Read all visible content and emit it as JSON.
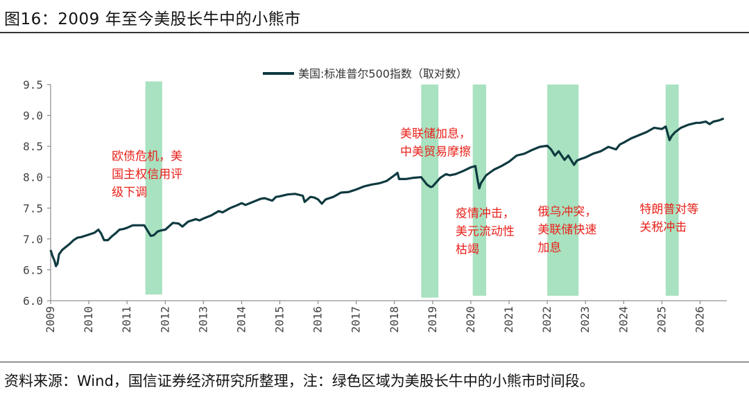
{
  "title": "图16：2009 年至今美股长牛中的小熊市",
  "source": "资料来源：Wind，国信证券经济研究所整理，注：绿色区域为美股长牛中的小熊市时间段。",
  "chart_data": {
    "type": "line",
    "title": "图16：2009 年至今美股长牛中的小熊市",
    "xlabel": "",
    "ylabel": "",
    "xlim": [
      2009.0,
      2026.7
    ],
    "ylim": [
      6.0,
      9.5
    ],
    "yticks": [
      "9.5",
      "9.0",
      "8.5",
      "8.0",
      "7.5",
      "7.0",
      "6.5",
      "6.0"
    ],
    "xticks": [
      "2009",
      "2010",
      "2011",
      "2012",
      "2013",
      "2014",
      "2015",
      "2016",
      "2017",
      "2018",
      "2019",
      "2020",
      "2021",
      "2022",
      "2023",
      "2024",
      "2025",
      "2026"
    ],
    "legend": {
      "position": "top-center",
      "label": "美国:标准普尔500指数（取对数）"
    },
    "grid": false,
    "colors": {
      "line": "#0f3a40",
      "band": "#a8e2c0",
      "annotation": "#e8211b"
    },
    "series": [
      {
        "name": "美国:标准普尔500指数（取对数）",
        "x": [
          2009.0,
          2009.05,
          2009.1,
          2009.14,
          2009.18,
          2009.22,
          2009.3,
          2009.4,
          2009.5,
          2009.6,
          2009.7,
          2009.8,
          2009.9,
          2010.0,
          2010.15,
          2010.25,
          2010.32,
          2010.4,
          2010.5,
          2010.6,
          2010.7,
          2010.8,
          2010.9,
          2011.0,
          2011.15,
          2011.3,
          2011.45,
          2011.55,
          2011.62,
          2011.7,
          2011.8,
          2011.9,
          2012.0,
          2012.2,
          2012.35,
          2012.45,
          2012.6,
          2012.8,
          2012.9,
          2013.0,
          2013.2,
          2013.4,
          2013.5,
          2013.7,
          2013.9,
          2014.0,
          2014.1,
          2014.3,
          2014.5,
          2014.6,
          2014.8,
          2014.9,
          2015.0,
          2015.2,
          2015.4,
          2015.6,
          2015.65,
          2015.8,
          2015.9,
          2016.0,
          2016.1,
          2016.2,
          2016.4,
          2016.6,
          2016.8,
          2016.9,
          2017.0,
          2017.2,
          2017.4,
          2017.6,
          2017.8,
          2018.0,
          2018.08,
          2018.12,
          2018.3,
          2018.5,
          2018.7,
          2018.85,
          2018.95,
          2019.0,
          2019.2,
          2019.35,
          2019.45,
          2019.6,
          2019.8,
          2020.0,
          2020.12,
          2020.18,
          2020.22,
          2020.26,
          2020.4,
          2020.6,
          2020.8,
          2021.0,
          2021.2,
          2021.4,
          2021.6,
          2021.8,
          2022.0,
          2022.1,
          2022.2,
          2022.3,
          2022.45,
          2022.55,
          2022.7,
          2022.78,
          2022.9,
          2023.0,
          2023.2,
          2023.4,
          2023.6,
          2023.8,
          2023.9,
          2024.0,
          2024.2,
          2024.4,
          2024.6,
          2024.8,
          2025.0,
          2025.1,
          2025.2,
          2025.26,
          2025.35,
          2025.5,
          2025.7,
          2025.9,
          2026.0,
          2026.15,
          2026.25,
          2026.35,
          2026.5,
          2026.62
        ],
        "values": [
          6.82,
          6.72,
          6.65,
          6.56,
          6.6,
          6.75,
          6.82,
          6.87,
          6.92,
          6.98,
          7.02,
          7.03,
          7.05,
          7.07,
          7.1,
          7.15,
          7.09,
          6.98,
          6.98,
          7.04,
          7.09,
          7.15,
          7.16,
          7.18,
          7.22,
          7.22,
          7.22,
          7.12,
          7.05,
          7.06,
          7.12,
          7.14,
          7.15,
          7.26,
          7.25,
          7.2,
          7.28,
          7.32,
          7.3,
          7.33,
          7.38,
          7.45,
          7.43,
          7.5,
          7.55,
          7.58,
          7.55,
          7.6,
          7.65,
          7.66,
          7.62,
          7.68,
          7.69,
          7.72,
          7.73,
          7.7,
          7.6,
          7.68,
          7.67,
          7.64,
          7.57,
          7.64,
          7.68,
          7.75,
          7.76,
          7.78,
          7.8,
          7.85,
          7.88,
          7.9,
          7.94,
          8.03,
          8.07,
          7.97,
          7.97,
          7.99,
          8.0,
          7.88,
          7.84,
          7.85,
          7.99,
          8.05,
          8.03,
          8.05,
          8.1,
          8.16,
          8.18,
          7.95,
          7.82,
          7.9,
          8.03,
          8.12,
          8.18,
          8.25,
          8.35,
          8.38,
          8.44,
          8.49,
          8.51,
          8.45,
          8.35,
          8.42,
          8.28,
          8.35,
          8.2,
          8.27,
          8.3,
          8.32,
          8.38,
          8.42,
          8.49,
          8.45,
          8.53,
          8.56,
          8.63,
          8.68,
          8.73,
          8.8,
          8.78,
          8.82,
          8.6,
          8.67,
          8.73,
          8.8,
          8.85,
          8.88,
          8.88,
          8.9,
          8.86,
          8.9,
          8.92,
          8.95
        ]
      }
    ],
    "bands": [
      {
        "x0": 2011.48,
        "x1": 2011.92,
        "y0": 6.1,
        "y1": 9.55
      },
      {
        "x0": 2018.7,
        "x1": 2019.15,
        "y0": 6.05,
        "y1": 9.5
      },
      {
        "x0": 2020.05,
        "x1": 2020.4,
        "y0": 6.08,
        "y1": 9.5
      },
      {
        "x0": 2022.0,
        "x1": 2022.82,
        "y0": 6.08,
        "y1": 9.5
      },
      {
        "x0": 2025.1,
        "x1": 2025.44,
        "y0": 6.08,
        "y1": 9.5
      }
    ],
    "annotations": [
      {
        "lines": [
          "欧债危机，美",
          "国主权信用评",
          "级下调"
        ],
        "x": 2010.6,
        "y": 8.28
      },
      {
        "lines": [
          "美联储加息，",
          "中美贸易摩擦"
        ],
        "x": 2018.15,
        "y": 8.64
      },
      {
        "lines": [
          "疫情冲击，",
          "美元流动性",
          "枯竭"
        ],
        "x": 2019.6,
        "y": 7.35
      },
      {
        "lines": [
          "俄乌冲突，",
          "美联储快速",
          "加息"
        ],
        "x": 2021.75,
        "y": 7.38
      },
      {
        "lines": [
          "特朗普对等",
          "关税冲击"
        ],
        "x": 2024.42,
        "y": 7.42
      }
    ]
  }
}
